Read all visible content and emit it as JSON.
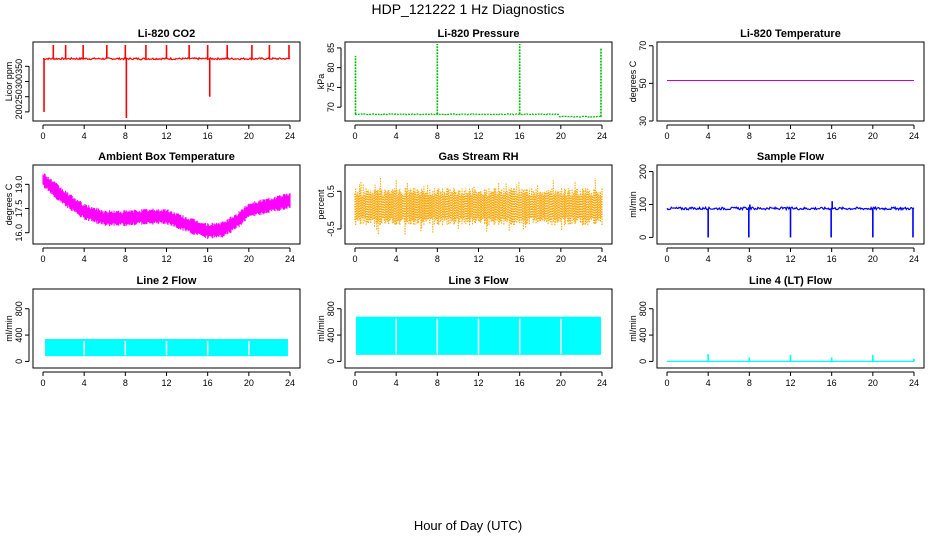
{
  "page": {
    "title": "HDP_121222  1 Hz Diagnostics",
    "xlabel": "Hour of Day (UTC)"
  },
  "chart_data": [
    {
      "type": "line",
      "title": "Li-820 CO2",
      "ylabel": "Licor ppm",
      "xlim": [
        0,
        24
      ],
      "ylim": [
        170,
        430
      ],
      "xticks": [
        0,
        4,
        8,
        12,
        16,
        20,
        24
      ],
      "yticks": [
        200,
        250,
        300,
        350
      ],
      "color": "#ff0000",
      "series_style": "steady_spikes",
      "baseline": 375,
      "noise": 3,
      "spikes": [
        {
          "x": 0.1,
          "y": 200
        },
        {
          "x": 1.0,
          "y": 420
        },
        {
          "x": 2.2,
          "y": 420
        },
        {
          "x": 3.9,
          "y": 420
        },
        {
          "x": 6.2,
          "y": 420
        },
        {
          "x": 8.0,
          "y": 420
        },
        {
          "x": 8.1,
          "y": 180
        },
        {
          "x": 10.0,
          "y": 420
        },
        {
          "x": 12.0,
          "y": 420
        },
        {
          "x": 14.2,
          "y": 420
        },
        {
          "x": 16.0,
          "y": 420
        },
        {
          "x": 16.2,
          "y": 250
        },
        {
          "x": 17.9,
          "y": 420
        },
        {
          "x": 20.3,
          "y": 420
        },
        {
          "x": 22.0,
          "y": 420
        },
        {
          "x": 23.9,
          "y": 420
        }
      ]
    },
    {
      "type": "line",
      "title": "Li-820 Pressure",
      "ylabel": "kPa",
      "xlim": [
        0,
        24
      ],
      "ylim": [
        66.5,
        86.5
      ],
      "xticks": [
        0,
        4,
        8,
        12,
        16,
        20,
        24
      ],
      "yticks": [
        70,
        75,
        80,
        85
      ],
      "color": "#00bb00",
      "series_style": "steady_spikes",
      "baseline": 68.2,
      "noise": 0.1,
      "segments": [
        {
          "from": 0,
          "to": 19.8,
          "y": 68.2
        },
        {
          "from": 19.8,
          "to": 24,
          "y": 67.6
        }
      ],
      "spikes": [
        {
          "x": 0.05,
          "y": 83
        },
        {
          "x": 8.0,
          "y": 86
        },
        {
          "x": 16.0,
          "y": 86
        },
        {
          "x": 23.9,
          "y": 85
        }
      ]
    },
    {
      "type": "line",
      "title": "Li-820 Temperature",
      "ylabel": "degrees C",
      "xlim": [
        0,
        24
      ],
      "ylim": [
        30,
        72
      ],
      "xticks": [
        0,
        4,
        8,
        12,
        16,
        20,
        24
      ],
      "yticks": [
        30,
        50,
        70
      ],
      "color": "#cc00cc",
      "series_style": "flat",
      "baseline": 51.5
    },
    {
      "type": "line",
      "title": "Ambient Box Temperature",
      "ylabel": "degrees C",
      "xlim": [
        0,
        24
      ],
      "ylim": [
        15.3,
        20.2
      ],
      "xticks": [
        0,
        4,
        8,
        12,
        16,
        20,
        24
      ],
      "yticks": [
        16.0,
        17.5,
        19.0
      ],
      "color": "#ff00ff",
      "series_style": "band",
      "center": [
        [
          0,
          19.3
        ],
        [
          2,
          18.2
        ],
        [
          4,
          17.3
        ],
        [
          6,
          16.9
        ],
        [
          8,
          16.9
        ],
        [
          10,
          17.0
        ],
        [
          12,
          17.0
        ],
        [
          14,
          16.5
        ],
        [
          16,
          16.1
        ],
        [
          17.5,
          16.2
        ],
        [
          19,
          16.8
        ],
        [
          20,
          17.4
        ],
        [
          22,
          17.7
        ],
        [
          24,
          18.0
        ]
      ],
      "halfwidth": 0.5
    },
    {
      "type": "line",
      "title": "Gas Stream RH",
      "ylabel": "percent",
      "xlim": [
        0,
        24
      ],
      "ylim": [
        -0.9,
        1.2
      ],
      "xticks": [
        0,
        4,
        8,
        12,
        16,
        20,
        24
      ],
      "yticks": [
        -0.5,
        0.5
      ],
      "color": "#ffa500",
      "series_style": "band",
      "center": [
        [
          0,
          0.1
        ],
        [
          24,
          0.1
        ]
      ],
      "halfwidth": 0.5,
      "outliers": 0.3
    },
    {
      "type": "line",
      "title": "Sample Flow",
      "ylabel": "ml/min",
      "xlim": [
        0,
        24
      ],
      "ylim": [
        -20,
        220
      ],
      "xticks": [
        0,
        4,
        8,
        12,
        16,
        20,
        24
      ],
      "yticks": [
        0,
        100,
        200
      ],
      "color": "#0000ff",
      "series_style": "steady_spikes",
      "baseline": 88,
      "noise": 4,
      "spikes": [
        {
          "x": 4.0,
          "y": 0
        },
        {
          "x": 7.95,
          "y": 0
        },
        {
          "x": 8.05,
          "y": 100
        },
        {
          "x": 12.0,
          "y": 0
        },
        {
          "x": 15.95,
          "y": 0
        },
        {
          "x": 16.05,
          "y": 110
        },
        {
          "x": 20.0,
          "y": 0
        },
        {
          "x": 23.9,
          "y": 0
        }
      ]
    },
    {
      "type": "line",
      "title": "Line 2 Flow",
      "ylabel": "ml/min",
      "xlim": [
        0,
        24
      ],
      "ylim": [
        -100,
        1100
      ],
      "xticks": [
        0,
        4,
        8,
        12,
        16,
        20,
        24
      ],
      "yticks": [
        0,
        400,
        800
      ],
      "color": "#00ffff",
      "series_style": "block",
      "low": 80,
      "high": 340,
      "from": 0.2,
      "to": 23.8,
      "gaps": [
        4,
        8,
        12,
        16,
        20
      ]
    },
    {
      "type": "line",
      "title": "Line 3 Flow",
      "ylabel": "ml/min",
      "xlim": [
        0,
        24
      ],
      "ylim": [
        -100,
        1100
      ],
      "xticks": [
        0,
        4,
        8,
        12,
        16,
        20,
        24
      ],
      "yticks": [
        0,
        400,
        800
      ],
      "color": "#00ffff",
      "series_style": "block",
      "low": 100,
      "high": 680,
      "from": 0.1,
      "to": 23.9,
      "gaps": [
        4,
        8,
        12,
        16,
        20
      ]
    },
    {
      "type": "line",
      "title": "Line 4 (LT) Flow",
      "ylabel": "ml/min",
      "xlim": [
        0,
        24
      ],
      "ylim": [
        -100,
        1100
      ],
      "xticks": [
        0,
        4,
        8,
        12,
        16,
        20,
        24
      ],
      "yticks": [
        0,
        400,
        800
      ],
      "color": "#00ffff",
      "series_style": "steady_spikes",
      "baseline": 0,
      "noise": 0,
      "spikes": [
        {
          "x": 4.0,
          "y": 110
        },
        {
          "x": 8.0,
          "y": 60
        },
        {
          "x": 12.0,
          "y": 100
        },
        {
          "x": 16.0,
          "y": 60
        },
        {
          "x": 20.0,
          "y": 100
        },
        {
          "x": 24.0,
          "y": 40
        }
      ]
    }
  ]
}
